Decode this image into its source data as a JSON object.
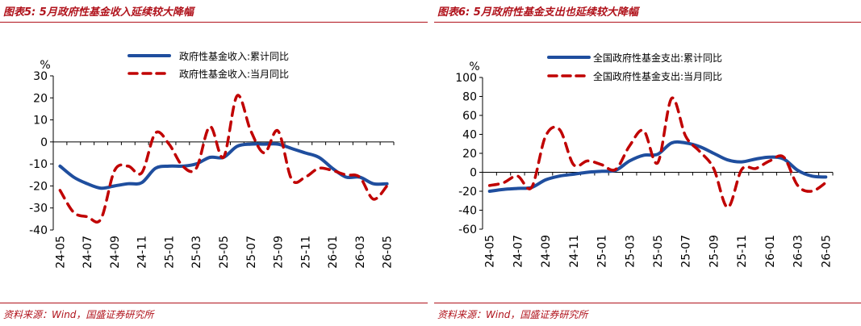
{
  "panels": [
    {
      "title": "图表5: 5月政府性基金收入延续较大降幅",
      "source": "资料来源：Wind，国盛证券研究所"
    },
    {
      "title": "图表6: 5月政府性基金支出也延续较大降幅",
      "source": "资料来源：Wind，国盛证券研究所"
    }
  ],
  "chart_data": [
    {
      "type": "line",
      "title": "",
      "ylabel": "%",
      "ylim": [
        -40,
        30
      ],
      "yticks": [
        30,
        20,
        10,
        0,
        -10,
        -20,
        -30,
        -40
      ],
      "grid": false,
      "legend_position": "top-right",
      "x": [
        "24-05",
        "24-06",
        "24-07",
        "24-08",
        "24-09",
        "24-10",
        "24-11",
        "24-12",
        "25-01",
        "25-02",
        "25-03",
        "25-04",
        "25-05",
        "25-06",
        "25-07",
        "25-08",
        "25-09",
        "25-10",
        "25-11",
        "25-12",
        "26-01",
        "26-02",
        "26-03",
        "26-04",
        "26-05"
      ],
      "x_tick_labels": [
        "24-05",
        "24-07",
        "24-09",
        "24-11",
        "25-01",
        "25-03",
        "25-05",
        "25-07",
        "25-09",
        "25-11",
        "26-01",
        "26-03",
        "26-05"
      ],
      "series": [
        {
          "name": "政府性基金收入:累计同比",
          "style": "solid",
          "color": "#1f4e9e",
          "values": [
            -11,
            -16,
            -19,
            -21,
            -20,
            -19,
            -18.5,
            -12,
            -11,
            -11,
            -10,
            -7,
            -7,
            -2,
            -1,
            -1,
            -1,
            -3,
            -5,
            -7,
            -12,
            -16,
            -16,
            -19,
            -19
          ]
        },
        {
          "name": "政府性基金收入:当月同比",
          "style": "dashed",
          "color": "#c00000",
          "values": [
            -22,
            -32,
            -34,
            -35,
            -13,
            -11,
            -14,
            4,
            -1,
            -11,
            -12,
            7,
            -7,
            21,
            5,
            -5,
            5,
            -17,
            -16,
            -12,
            -13,
            -15,
            -16,
            -26,
            -20
          ]
        }
      ]
    },
    {
      "type": "line",
      "title": "",
      "ylabel": "%",
      "ylim": [
        -60,
        100
      ],
      "yticks": [
        100,
        80,
        60,
        40,
        20,
        0,
        -20,
        -40,
        -60
      ],
      "grid": false,
      "legend_position": "top-right",
      "x": [
        "24-05",
        "24-06",
        "24-07",
        "24-08",
        "24-09",
        "24-10",
        "24-11",
        "24-12",
        "25-01",
        "25-02",
        "25-03",
        "25-04",
        "25-05",
        "25-06",
        "25-07",
        "25-08",
        "25-09",
        "25-10",
        "25-11",
        "25-12",
        "26-01",
        "26-02",
        "26-03",
        "26-04",
        "26-05"
      ],
      "x_tick_labels": [
        "24-05",
        "24-07",
        "24-09",
        "24-11",
        "25-01",
        "25-03",
        "25-05",
        "25-07",
        "25-09",
        "25-11",
        "26-01",
        "26-03",
        "26-05"
      ],
      "series": [
        {
          "name": "全国政府性基金支出:累计同比",
          "style": "solid",
          "color": "#1f4e9e",
          "values": [
            -20,
            -18,
            -17,
            -16,
            -8,
            -4,
            -2,
            0,
            1,
            2,
            12,
            18,
            19,
            31,
            31,
            27,
            20,
            13,
            11,
            14,
            16,
            14,
            2,
            -4,
            -5
          ]
        },
        {
          "name": "全国政府性基金支出:当月同比",
          "style": "dashed",
          "color": "#c00000",
          "values": [
            -14,
            -11,
            -4,
            -16,
            38,
            45,
            8,
            12,
            8,
            3,
            28,
            44,
            10,
            78,
            38,
            22,
            4,
            -37,
            3,
            4,
            12,
            16,
            -14,
            -20,
            -11
          ]
        }
      ]
    }
  ]
}
